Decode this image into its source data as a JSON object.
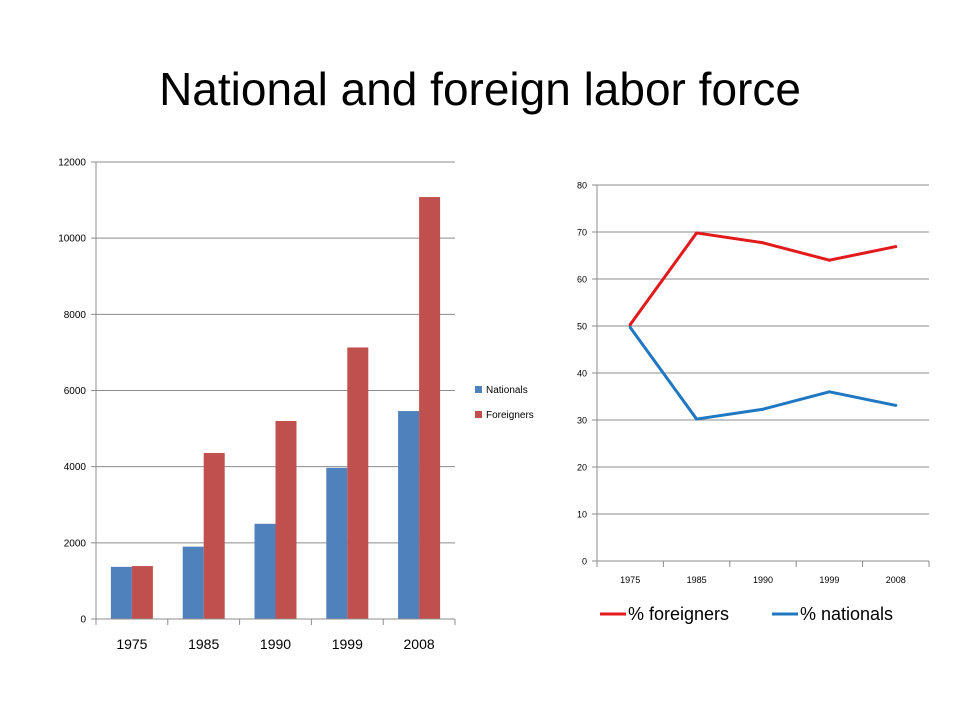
{
  "slide": {
    "title": "National and foreign labor force"
  },
  "chart_data": [
    {
      "type": "bar",
      "title": "",
      "categories": [
        "1975",
        "1985",
        "1990",
        "1999",
        "2008"
      ],
      "series": [
        {
          "name": "Nationals",
          "color": "#4f81bd",
          "values": [
            1370,
            1900,
            2500,
            3970,
            5460
          ]
        },
        {
          "name": "Foreigners",
          "color": "#c0504d",
          "values": [
            1390,
            4360,
            5200,
            7130,
            11080
          ]
        }
      ],
      "xlabel": "",
      "ylabel": "",
      "ylim": [
        0,
        12000
      ],
      "yticks": [
        "0",
        "2000",
        "4000",
        "6000",
        "8000",
        "10000",
        "12000"
      ],
      "grid": true,
      "legend": "right"
    },
    {
      "type": "line",
      "title": "",
      "categories": [
        "1975",
        "1985",
        "1990",
        "1999",
        "2008"
      ],
      "series": [
        {
          "name": "% foreigners",
          "color": "#e31a1c",
          "values": [
            50.3,
            69.8,
            67.7,
            64.0,
            66.9
          ]
        },
        {
          "name": "% nationals",
          "color": "#1f78c1",
          "values": [
            49.7,
            30.2,
            32.3,
            36.0,
            33.1
          ]
        }
      ],
      "xlabel": "",
      "ylabel": "",
      "ylim": [
        0,
        80
      ],
      "yticks": [
        "0",
        "10",
        "20",
        "30",
        "40",
        "50",
        "60",
        "70",
        "80"
      ],
      "grid": true,
      "legend": "bottom"
    }
  ]
}
